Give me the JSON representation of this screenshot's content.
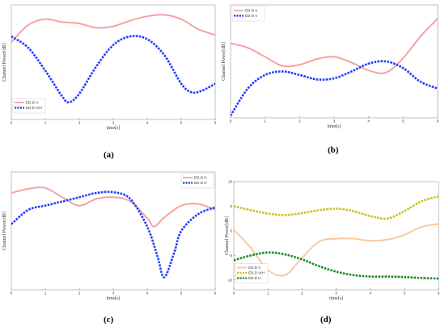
{
  "chart_data": [
    {
      "id": "a",
      "type": "line",
      "caption": "(a)",
      "xlabel": "time[s]",
      "ylabel": "Channel Power[dB]",
      "xlim": [
        0,
        6
      ],
      "xticks": [
        "0",
        "1",
        "2",
        "3",
        "4",
        "5",
        "6"
      ],
      "ylim": [
        -2,
        6
      ],
      "yticks": [],
      "legend_position": "bottom-left",
      "series": [
        {
          "name": "ED-D V",
          "color": "#f4a3a3",
          "style": "solid",
          "x": [
            0,
            0.5,
            1,
            1.5,
            2,
            2.5,
            3,
            3.5,
            4,
            4.5,
            5,
            5.5,
            6
          ],
          "y": [
            3.4,
            4.6,
            5.0,
            4.8,
            4.7,
            4.4,
            4.5,
            4.9,
            5.2,
            5.3,
            5.0,
            4.3,
            3.9
          ]
        },
        {
          "name": "ED-D V/H",
          "color": "#1f3cff",
          "style": "dashed",
          "x": [
            0,
            0.5,
            1,
            1.5,
            1.7,
            2,
            2.5,
            3,
            3.5,
            4,
            4.5,
            5,
            5.3,
            5.6,
            6
          ],
          "y": [
            3.8,
            3.0,
            1.4,
            -0.4,
            -0.8,
            -0.2,
            1.7,
            3.2,
            3.8,
            3.6,
            2.5,
            0.5,
            -0.1,
            0.0,
            0.5
          ]
        }
      ]
    },
    {
      "id": "b",
      "type": "line",
      "caption": "(b)",
      "xlabel": "time[s]",
      "ylabel": "Channel Power[dB]",
      "xlim": [
        0,
        6
      ],
      "xticks": [
        "0",
        "1",
        "2",
        "3",
        "4",
        "5",
        "6"
      ],
      "ylim": [
        -4,
        6
      ],
      "yticks": [],
      "legend_position": "top-left",
      "series": [
        {
          "name": "ED-D V",
          "color": "#f4a3a3",
          "style": "solid",
          "x": [
            0,
            0.5,
            1,
            1.5,
            2,
            2.5,
            3,
            3.5,
            4,
            4.5,
            5,
            5.5,
            6
          ],
          "y": [
            2.6,
            2.2,
            1.4,
            0.6,
            0.7,
            1.2,
            1.4,
            0.9,
            0.2,
            0.0,
            1.3,
            3.2,
            4.8
          ]
        },
        {
          "name": "ED-D V",
          "color": "#1f3cff",
          "style": "dashed",
          "x": [
            0,
            0.5,
            1,
            1.5,
            2,
            2.5,
            3,
            3.5,
            4,
            4.5,
            5,
            5.5,
            6
          ],
          "y": [
            -3.8,
            -1.4,
            -0.2,
            0.1,
            -0.2,
            -0.6,
            -0.5,
            0.1,
            0.8,
            1.0,
            0.4,
            -0.8,
            -1.4
          ]
        }
      ]
    },
    {
      "id": "c",
      "type": "line",
      "caption": "(c)",
      "xlabel": "time[s]",
      "ylabel": "Channel Power[dB]",
      "xlim": [
        0,
        6
      ],
      "xticks": [
        "0",
        "1",
        "2",
        "3",
        "4",
        "5",
        "6"
      ],
      "ylim": [
        -6,
        8
      ],
      "yticks": [],
      "legend_position": "top-right",
      "series": [
        {
          "name": "ED-D H",
          "color": "#f4a3a3",
          "style": "solid",
          "x": [
            0,
            0.5,
            1,
            1.5,
            2,
            2.5,
            3,
            3.5,
            4,
            4.2,
            4.5,
            5,
            5.5,
            6
          ],
          "y": [
            5.5,
            6.0,
            6.1,
            5.0,
            4.0,
            4.8,
            5.0,
            4.5,
            2.5,
            1.5,
            2.6,
            4.0,
            4.2,
            3.5
          ]
        },
        {
          "name": "ED-D H",
          "color": "#1f3cff",
          "style": "dashed",
          "x": [
            0,
            0.5,
            1,
            1.5,
            2,
            2.5,
            3,
            3.5,
            4,
            4.3,
            4.5,
            4.8,
            5,
            5.5,
            6
          ],
          "y": [
            1.8,
            3.5,
            4.0,
            4.5,
            5.0,
            5.5,
            5.6,
            4.8,
            1.5,
            -2.0,
            -4.5,
            -1.5,
            1.0,
            3.0,
            3.8
          ]
        }
      ]
    },
    {
      "id": "d",
      "type": "line",
      "caption": "(d)",
      "xlabel": "time[s]",
      "ylabel": "Channel Power[dB]",
      "xlim": [
        0,
        6
      ],
      "xticks": [
        "0",
        "1",
        "2",
        "3",
        "4",
        "5",
        "6"
      ],
      "ylim": [
        -12,
        10
      ],
      "yticks": [
        "10",
        "5",
        "0",
        "-5",
        "-10"
      ],
      "legend_position": "bottom-left",
      "series": [
        {
          "name": "ED-D V",
          "color": "#f9c9a0",
          "style": "solid",
          "x": [
            0,
            0.5,
            1,
            1.5,
            2,
            2.5,
            3,
            3.5,
            4,
            4.5,
            5,
            5.5,
            6
          ],
          "y": [
            0.2,
            -3.5,
            -8.0,
            -9.0,
            -5.5,
            -2.2,
            -1.6,
            -1.6,
            -2.0,
            -1.8,
            -0.8,
            0.8,
            1.4
          ]
        },
        {
          "name": "ED-D V/H",
          "color": "#c9c31c",
          "style": "dashed",
          "x": [
            0,
            0.5,
            1,
            1.5,
            2,
            2.5,
            3,
            3.5,
            4,
            4.5,
            5,
            5.5,
            6
          ],
          "y": [
            5.0,
            4.2,
            3.5,
            3.2,
            3.6,
            4.2,
            4.5,
            4.0,
            3.0,
            2.5,
            4.0,
            6.0,
            7.0
          ]
        },
        {
          "name": "ED-D H",
          "color": "#1d8a1d",
          "style": "dashed",
          "x": [
            0,
            0.5,
            1,
            1.5,
            2,
            2.5,
            3,
            3.5,
            4,
            4.5,
            5,
            5.5,
            6
          ],
          "y": [
            -6.0,
            -5.0,
            -4.4,
            -4.8,
            -5.8,
            -7.2,
            -8.3,
            -9.0,
            -9.3,
            -9.3,
            -9.4,
            -9.6,
            -9.7
          ]
        }
      ]
    }
  ]
}
